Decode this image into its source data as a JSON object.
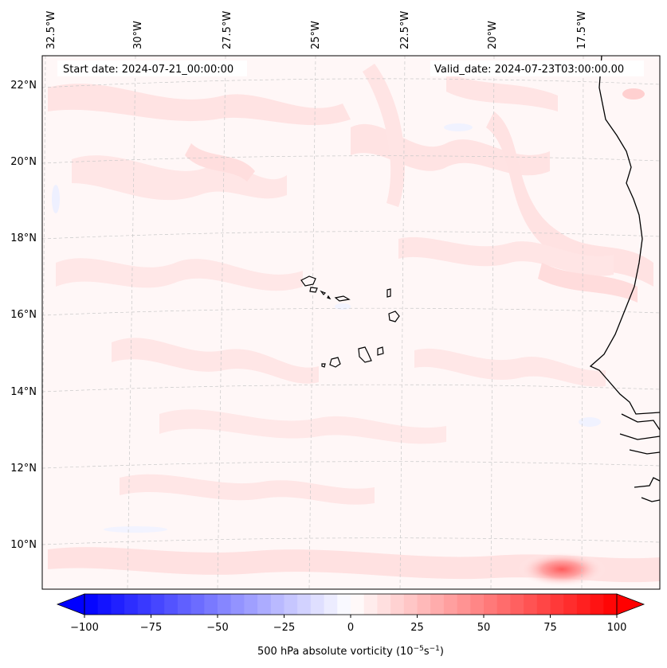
{
  "map": {
    "start_label": "Start date: 2024-07-21_00:00:00",
    "valid_label": "Valid_date: 2024-07-23T03:00:00.00",
    "lon_labels": [
      "32.5°W",
      "30°W",
      "27.5°W",
      "25°W",
      "22.5°W",
      "20°W",
      "17.5°W"
    ],
    "lat_labels": [
      "22°N",
      "20°N",
      "18°N",
      "16°N",
      "14°N",
      "12°N",
      "10°N"
    ],
    "gridlines": "dashed light gray",
    "coastline_color": "#000000"
  },
  "colorbar": {
    "label_prefix": "500 hPa absolute vorticity (10",
    "label_exp1": "−5",
    "label_mid": "s",
    "label_exp2": "−1",
    "label_suffix": ")",
    "ticks": [
      "−100",
      "−75",
      "−50",
      "−25",
      "0",
      "25",
      "50",
      "75",
      "100"
    ],
    "min": -100,
    "max": 100,
    "levels": 40,
    "colormap": "bwr",
    "extend": "both"
  },
  "colors": {
    "negative": "#0000ff",
    "neutral": "#ffffff",
    "positive": "#ff0000"
  }
}
